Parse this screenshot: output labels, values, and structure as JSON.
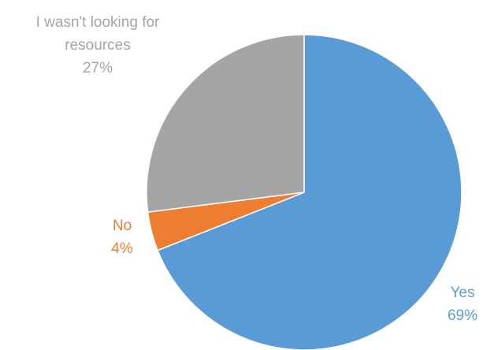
{
  "chart_data": {
    "type": "pie",
    "title": "",
    "start_angle_deg": 0,
    "direction": "clockwise",
    "slices": [
      {
        "category": "Yes",
        "value": 69,
        "value_label": "69%",
        "color": "#5B9BD5",
        "label_lines": [
          "Yes"
        ]
      },
      {
        "category": "No",
        "value": 4,
        "value_label": "4%",
        "color": "#ED7D31",
        "label_lines": [
          "No"
        ]
      },
      {
        "category": "I wasn't looking for resources",
        "value": 27,
        "value_label": "27%",
        "color": "#A5A5A5",
        "label_lines": [
          "I wasn't looking for",
          "resources"
        ]
      }
    ]
  }
}
